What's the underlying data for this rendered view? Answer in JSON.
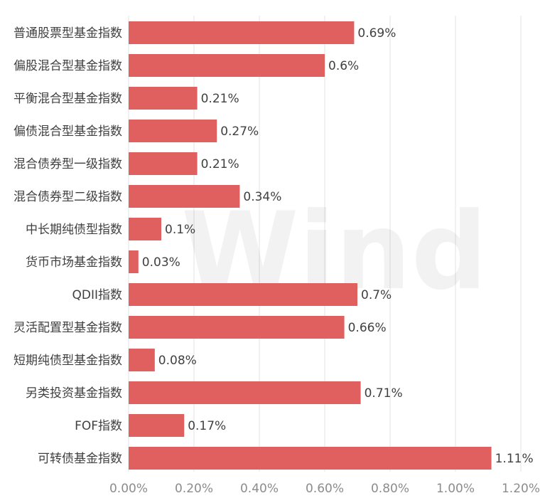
{
  "watermark": "Wind",
  "chart_data": {
    "type": "bar",
    "orientation": "horizontal",
    "categories": [
      "普通股票型基金指数",
      "偏股混合型基金指数",
      "平衡混合型基金指数",
      "偏债混合型基金指数",
      "混合债券型一级指数",
      "混合债券型二级指数",
      "中长期纯债型指数",
      "货币市场基金指数",
      "QDII指数",
      "灵活配置型基金指数",
      "短期纯债型基金指数",
      "另类投资基金指数",
      "FOF指数",
      "可转债基金指数"
    ],
    "values": [
      0.69,
      0.6,
      0.21,
      0.27,
      0.21,
      0.34,
      0.1,
      0.03,
      0.7,
      0.66,
      0.08,
      0.71,
      0.17,
      1.11
    ],
    "value_labels": [
      "0.69%",
      "0.6%",
      "0.21%",
      "0.27%",
      "0.21%",
      "0.34%",
      "0.1%",
      "0.03%",
      "0.7%",
      "0.66%",
      "0.08%",
      "0.71%",
      "0.17%",
      "1.11%"
    ],
    "xticks": [
      "0.00%",
      "0.20%",
      "0.40%",
      "0.60%",
      "0.80%",
      "1.00%",
      "1.20%"
    ],
    "xlim": [
      0,
      1.2
    ],
    "grid": "vertical",
    "bar_color": "#e06060",
    "title": "",
    "xlabel": "",
    "ylabel": ""
  }
}
